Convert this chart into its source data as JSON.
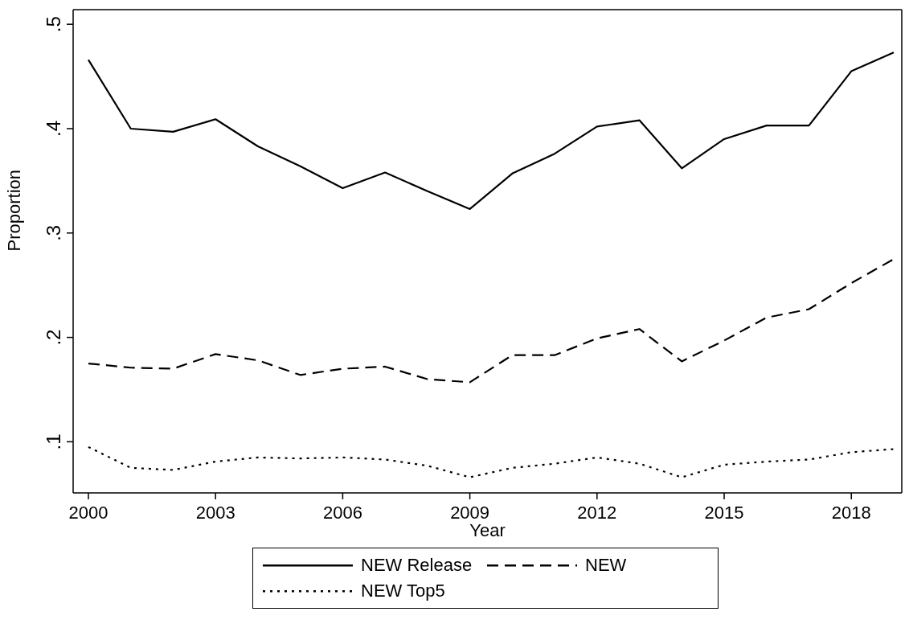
{
  "chart_data": {
    "type": "line",
    "xlabel": "Year",
    "ylabel": "Proportion",
    "x": [
      2000,
      2001,
      2002,
      2003,
      2004,
      2005,
      2006,
      2007,
      2008,
      2009,
      2010,
      2011,
      2012,
      2013,
      2014,
      2015,
      2016,
      2017,
      2018,
      2019
    ],
    "xlim": [
      1999.64,
      2019.19
    ],
    "xticks": [
      2000,
      2003,
      2006,
      2009,
      2012,
      2015,
      2018
    ],
    "ylim": [
      0.051,
      0.514
    ],
    "yticks": [
      {
        "value": 0.1,
        "label": ".1"
      },
      {
        "value": 0.2,
        "label": ".2"
      },
      {
        "value": 0.3,
        "label": ".3"
      },
      {
        "value": 0.4,
        "label": ".4"
      },
      {
        "value": 0.5,
        "label": ".5"
      }
    ],
    "grid": false,
    "legend": "bottom",
    "marker": "none",
    "series": [
      {
        "name": "NEW Release",
        "color": "#000000",
        "line_style": "solid",
        "values": [
          0.466,
          0.4,
          0.397,
          0.409,
          0.383,
          0.364,
          0.343,
          0.358,
          0.34,
          0.323,
          0.357,
          0.376,
          0.402,
          0.408,
          0.362,
          0.39,
          0.403,
          0.403,
          0.455,
          0.473
        ]
      },
      {
        "name": "NEW",
        "color": "#000000",
        "line_style": "dashed",
        "values": [
          0.175,
          0.171,
          0.17,
          0.184,
          0.178,
          0.164,
          0.17,
          0.172,
          0.16,
          0.157,
          0.183,
          0.183,
          0.199,
          0.208,
          0.177,
          0.197,
          0.219,
          0.227,
          0.252,
          0.275
        ]
      },
      {
        "name": "NEW Top5",
        "color": "#000000",
        "line_style": "dotted",
        "values": [
          0.095,
          0.075,
          0.073,
          0.081,
          0.085,
          0.084,
          0.085,
          0.083,
          0.077,
          0.066,
          0.075,
          0.079,
          0.085,
          0.079,
          0.066,
          0.078,
          0.081,
          0.083,
          0.09,
          0.093
        ]
      }
    ]
  }
}
